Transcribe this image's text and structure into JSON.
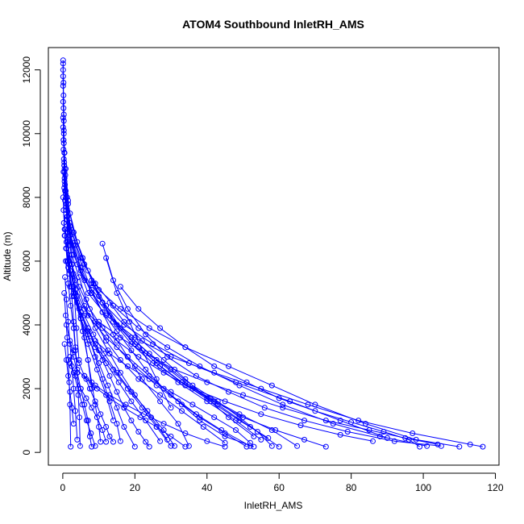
{
  "chart_data": {
    "type": "scatter",
    "title": "ATOM4 Southbound InletRH_AMS",
    "xlabel": "InletRH_AMS",
    "ylabel": "Altitude (m)",
    "xlim": [
      -4,
      121
    ],
    "ylim": [
      -400,
      12700
    ],
    "x_ticks": [
      0,
      20,
      40,
      60,
      80,
      100,
      120
    ],
    "y_ticks": [
      0,
      2000,
      4000,
      6000,
      8000,
      10000,
      12000
    ],
    "grid": false,
    "legend": "none",
    "marker": "open-circle",
    "connected": true,
    "color": "#0000ff",
    "series": [
      {
        "x": [
          0.1,
          0.1,
          0.2,
          0.1,
          0.3,
          0.2,
          0.4,
          0.6,
          1.0,
          2.0,
          3.5,
          5.5,
          8.0,
          11.0,
          14.0,
          18.0,
          22.0,
          27.0,
          32.0,
          35.0
        ],
        "y": [
          12300,
          12000,
          11600,
          11000,
          10400,
          9800,
          9000,
          8400,
          7800,
          7200,
          6500,
          5800,
          5100,
          4400,
          3700,
          3000,
          2300,
          1600,
          900,
          200
        ]
      },
      {
        "x": [
          0.2,
          0.5,
          1.0,
          2.0,
          4.0,
          7.0,
          12.0,
          20.0,
          30.0,
          42.0,
          55.0,
          68.0,
          82.0,
          97.0,
          113.0,
          116.5
        ],
        "y": [
          9500,
          8600,
          7700,
          6800,
          5900,
          5000,
          4300,
          3600,
          3000,
          2500,
          2000,
          1500,
          1000,
          600,
          250,
          180
        ]
      },
      {
        "x": [
          0.1,
          0.4,
          1.2,
          3.0,
          6.0,
          10.0,
          16.0,
          24.0,
          34.0,
          46.0,
          58.0,
          70.0,
          84.0,
          98.0,
          110.0
        ],
        "y": [
          10200,
          9100,
          8000,
          6900,
          5900,
          5100,
          4500,
          3900,
          3300,
          2700,
          2100,
          1500,
          900,
          400,
          180
        ]
      },
      {
        "x": [
          0.3,
          0.8,
          2.0,
          5.0,
          9.0,
          14.0,
          21.0,
          29.0,
          38.0,
          49.0,
          61.0,
          75.0,
          88.0,
          101.0
        ],
        "y": [
          9200,
          8200,
          7100,
          6100,
          5300,
          4600,
          3900,
          3300,
          2700,
          2100,
          1500,
          900,
          500,
          200
        ]
      },
      {
        "x": [
          0.2,
          0.6,
          1.5,
          3.0,
          6.0,
          11.0,
          17.0,
          25.0,
          35.0,
          48.0,
          63.0,
          77.0,
          90.0
        ],
        "y": [
          8800,
          7900,
          7000,
          6200,
          5400,
          4700,
          4000,
          3400,
          2800,
          2200,
          1600,
          1000,
          450
        ]
      },
      {
        "x": [
          0.5,
          1.0,
          2.5,
          5.0,
          8.0,
          13.0,
          19.0,
          26.0,
          34.0,
          43.0,
          52.0,
          60.0
        ],
        "y": [
          8500,
          7600,
          6700,
          5800,
          5000,
          4300,
          3600,
          2900,
          2200,
          1500,
          800,
          180
        ]
      },
      {
        "x": [
          0.1,
          0.5,
          1.5,
          3.5,
          7.0,
          12.0,
          18.0,
          24.0,
          30.0,
          37.0,
          44.0,
          52.0
        ],
        "y": [
          8000,
          7000,
          6000,
          5100,
          4300,
          3600,
          3000,
          2400,
          1800,
          1200,
          700,
          200
        ]
      },
      {
        "x": [
          0.4,
          1.2,
          2.8,
          5.0,
          8.0,
          11.0,
          15.0,
          19.0,
          23.0,
          28.0,
          33.0,
          38.0,
          45.0,
          53.0
        ],
        "y": [
          8300,
          7400,
          6500,
          5700,
          5000,
          4400,
          3800,
          3200,
          2600,
          2000,
          1500,
          1000,
          500,
          180
        ]
      },
      {
        "x": [
          0.2,
          0.6,
          1.2,
          2.5,
          4.5,
          7.0,
          10.0,
          14.0,
          18.0,
          22.0,
          26.0,
          30.0
        ],
        "y": [
          7600,
          6800,
          6000,
          5200,
          4500,
          3800,
          3200,
          2600,
          2000,
          1400,
          800,
          200
        ]
      },
      {
        "x": [
          0.3,
          0.9,
          1.8,
          3.0,
          5.0,
          7.5,
          10.0,
          12.5,
          15.0,
          17.0,
          20.0
        ],
        "y": [
          7200,
          6400,
          5600,
          4900,
          4200,
          3500,
          2800,
          2100,
          1400,
          800,
          180
        ]
      },
      {
        "x": [
          0.5,
          1.5,
          3.0,
          5.0,
          7.0,
          9.0,
          11.0,
          13.0,
          15.0,
          16.0
        ],
        "y": [
          6800,
          6000,
          5200,
          4400,
          3700,
          3000,
          2300,
          1600,
          900,
          350
        ]
      },
      {
        "x": [
          1.0,
          2.0,
          3.5,
          5.0,
          6.0,
          7.0,
          8.0,
          9.0,
          10.0,
          10.5
        ],
        "y": [
          6400,
          5700,
          5000,
          4300,
          3600,
          2900,
          2200,
          1500,
          800,
          330
        ]
      },
      {
        "x": [
          0.8,
          1.5,
          2.2,
          3.0,
          3.5,
          4.0,
          4.3,
          4.6,
          4.8
        ],
        "y": [
          6000,
          5300,
          4600,
          3900,
          3200,
          2500,
          1800,
          1100,
          200
        ]
      },
      {
        "x": [
          0.6,
          1.0,
          1.5,
          2.0,
          2.5,
          3.0,
          3.5,
          4.0
        ],
        "y": [
          5500,
          4800,
          4100,
          3400,
          2700,
          2000,
          1300,
          400
        ]
      },
      {
        "x": [
          0.4,
          0.8,
          1.2,
          1.5,
          1.8,
          2.0,
          2.2
        ],
        "y": [
          5000,
          4300,
          3600,
          2900,
          2200,
          1500,
          180
        ]
      },
      {
        "x": [
          1.5,
          3.0,
          5.5,
          8.5,
          12.0,
          16.0,
          21.0,
          27.0,
          34.0,
          42.0,
          50.0,
          59.0,
          67.0,
          73.0
        ],
        "y": [
          7800,
          6900,
          6100,
          5300,
          4600,
          3900,
          3300,
          2700,
          2100,
          1600,
          1100,
          700,
          400,
          180
        ]
      },
      {
        "x": [
          2.0,
          4.0,
          7.0,
          10.0,
          14.0,
          19.0,
          25.0,
          32.0,
          40.0,
          48.0,
          55.0
        ],
        "y": [
          7500,
          6600,
          5700,
          4900,
          4100,
          3400,
          2800,
          2200,
          1600,
          1000,
          400
        ]
      },
      {
        "x": [
          1.0,
          2.5,
          4.5,
          7.5,
          11.0,
          15.0,
          20.0,
          26.0,
          32.0,
          38.0,
          45.0,
          51.0
        ],
        "y": [
          6600,
          5900,
          5200,
          4500,
          3900,
          3300,
          2700,
          2100,
          1600,
          1100,
          600,
          180
        ]
      },
      {
        "x": [
          0.7,
          1.8,
          3.5,
          6.0,
          9.0,
          12.5,
          16.0,
          20.0,
          24.5,
          29.0
        ],
        "y": [
          7000,
          6200,
          5400,
          4600,
          3900,
          3200,
          2500,
          1800,
          1100,
          400
        ]
      },
      {
        "x": [
          0.2,
          0.4,
          0.8,
          1.3,
          2.0,
          3.0,
          4.0,
          5.5,
          7.0,
          8.0
        ],
        "y": [
          9800,
          9000,
          8200,
          7400,
          6500,
          5600,
          4700,
          3800,
          2900,
          2000
        ]
      },
      {
        "x": [
          0.1,
          0.3,
          0.5,
          0.8,
          1.2,
          1.6,
          2.0,
          2.5,
          3.0,
          3.5,
          4.0
        ],
        "y": [
          10500,
          9700,
          8900,
          8100,
          7300,
          6500,
          5700,
          4900,
          4100,
          3300,
          2500
        ]
      },
      {
        "x": [
          3.0,
          5.5,
          8.0,
          11.0,
          15.0,
          20.0,
          26.0,
          33.0,
          41.0,
          49.0,
          58.0,
          65.0
        ],
        "y": [
          6900,
          6100,
          5400,
          4700,
          4000,
          3400,
          2800,
          2200,
          1700,
          1200,
          700,
          200
        ]
      },
      {
        "x": [
          2.5,
          4.5,
          6.5,
          9.0,
          12.0,
          16.0,
          21.0,
          27.0,
          33.0,
          39.0,
          45.0
        ],
        "y": [
          6200,
          5500,
          4800,
          4100,
          3500,
          2900,
          2300,
          1800,
          1300,
          800,
          300
        ]
      },
      {
        "x": [
          11.0,
          14.0,
          18.0,
          23.0,
          29.0,
          37.0,
          46.0,
          56.0,
          67.0,
          79.0,
          92.0,
          105.0
        ],
        "y": [
          6550,
          5400,
          4500,
          3700,
          3000,
          2400,
          1900,
          1400,
          1000,
          650,
          350,
          200
        ]
      },
      {
        "x": [
          8.0,
          11.0,
          15.0,
          20.0,
          26.0,
          33.0,
          41.0,
          49.0,
          57.0
        ],
        "y": [
          5300,
          4700,
          4000,
          3400,
          2800,
          2200,
          1600,
          1000,
          450
        ]
      },
      {
        "x": [
          4.0,
          6.0,
          8.5,
          11.5,
          15.0,
          19.0,
          23.5,
          28.0,
          31.0
        ],
        "y": [
          4900,
          4300,
          3700,
          3100,
          2500,
          1900,
          1300,
          700,
          200
        ]
      },
      {
        "x": [
          5.0,
          7.0,
          9.0,
          12.0,
          15.5,
          19.0,
          23.0,
          27.0
        ],
        "y": [
          4400,
          3900,
          3300,
          2800,
          2200,
          1600,
          1000,
          350
        ]
      },
      {
        "x": [
          7.0,
          9.0,
          11.0,
          13.0,
          15.0,
          17.0,
          19.0,
          21.0,
          23.0,
          24.0
        ],
        "y": [
          3900,
          3400,
          2900,
          2400,
          1900,
          1400,
          1000,
          650,
          330,
          180
        ]
      },
      {
        "x": [
          9.0,
          13.0,
          18.0,
          24.0,
          30.0,
          36.0,
          42.0,
          48.0,
          52.0
        ],
        "y": [
          3500,
          3100,
          2700,
          2300,
          1900,
          1500,
          1100,
          700,
          300
        ]
      },
      {
        "x": [
          3.0,
          4.5,
          6.0,
          7.5,
          9.0,
          10.5,
          12.0,
          13.0,
          14.0
        ],
        "y": [
          3200,
          2800,
          2400,
          2000,
          1600,
          1200,
          800,
          500,
          330
        ]
      },
      {
        "x": [
          16.0,
          21.0,
          27.0,
          34.0,
          42.0,
          51.0,
          60.0,
          70.0,
          80.0,
          89.0,
          96.0,
          99.0
        ],
        "y": [
          5200,
          4500,
          3900,
          3300,
          2700,
          2200,
          1700,
          1300,
          950,
          650,
          400,
          180
        ]
      },
      {
        "x": [
          13.0,
          17.0,
          22.0,
          28.0,
          34.0,
          40.0,
          46.0,
          53.0
        ],
        "y": [
          4700,
          4100,
          3500,
          2900,
          2300,
          1700,
          1100,
          500
        ]
      },
      {
        "x": [
          1.0,
          2.0,
          3.0,
          4.0,
          5.0,
          6.0,
          7.0,
          7.5,
          8.0
        ],
        "y": [
          4000,
          3500,
          3000,
          2500,
          2000,
          1500,
          1000,
          500,
          180
        ]
      },
      {
        "x": [
          2.0,
          3.5,
          5.0,
          6.5,
          8.0,
          9.5,
          11.0,
          12.0
        ],
        "y": [
          2800,
          2400,
          2000,
          1700,
          1400,
          1100,
          700,
          330
        ]
      },
      {
        "x": [
          4.0,
          6.5,
          9.5,
          13.0,
          17.0,
          21.5,
          26.0,
          30.0,
          34.0
        ],
        "y": [
          2600,
          2300,
          2000,
          1700,
          1400,
          1100,
          800,
          500,
          180
        ]
      },
      {
        "x": [
          6.0,
          9.0,
          13.0,
          17.5,
          22.5,
          28.0,
          34.0,
          40.0,
          45.0
        ],
        "y": [
          2400,
          2100,
          1800,
          1500,
          1200,
          900,
          600,
          350,
          180
        ]
      },
      {
        "x": [
          19.0,
          24.0,
          30.0,
          36.0,
          43.0,
          49.0,
          54.0,
          58.0
        ],
        "y": [
          3600,
          3100,
          2600,
          2100,
          1600,
          1100,
          650,
          200
        ]
      },
      {
        "x": [
          0.1,
          0.1,
          0.2,
          0.3,
          0.5,
          0.7,
          0.9,
          1.1,
          1.4,
          1.7,
          2.0
        ],
        "y": [
          12200,
          11500,
          10800,
          10100,
          9400,
          8700,
          8000,
          7300,
          6600,
          5900,
          5200
        ]
      },
      {
        "x": [
          0.1,
          0.2,
          0.3,
          0.3,
          0.4,
          0.5,
          0.6
        ],
        "y": [
          11800,
          11200,
          10600,
          10000,
          9400,
          8800,
          8200
        ]
      },
      {
        "x": [
          1.5,
          3.0,
          5.0,
          7.0,
          9.5,
          12.0,
          14.0
        ],
        "y": [
          5800,
          5000,
          4200,
          3400,
          2600,
          1800,
          1000
        ]
      },
      {
        "x": [
          12.0,
          15.0,
          18.5,
          22.0,
          26.0,
          30.0
        ],
        "y": [
          6100,
          5000,
          4100,
          3200,
          2300,
          1400
        ]
      },
      {
        "x": [
          0.8,
          1.5,
          2.0,
          2.6,
          3.2,
          3.8,
          4.5
        ],
        "y": [
          8900,
          7900,
          6900,
          5900,
          4900,
          3900,
          2900
        ]
      },
      {
        "x": [
          10.0,
          16.0,
          23.0,
          31.0,
          40.0,
          50.0,
          61.0,
          73.0,
          85.0,
          95.0,
          104.0
        ],
        "y": [
          4100,
          3600,
          3100,
          2600,
          2200,
          1800,
          1400,
          1000,
          700,
          450,
          250
        ]
      },
      {
        "x": [
          6.0,
          10.0,
          15.0,
          21.0,
          28.0,
          36.0,
          45.0,
          55.0,
          66.0,
          77.0,
          86.0
        ],
        "y": [
          4500,
          4000,
          3500,
          3000,
          2500,
          2000,
          1600,
          1200,
          850,
          550,
          350
        ]
      },
      {
        "x": [
          2.0,
          3.0,
          4.2,
          5.4,
          6.6,
          7.8,
          9.0
        ],
        "y": [
          3000,
          2500,
          2000,
          1500,
          1000,
          600,
          200
        ]
      },
      {
        "x": [
          0.5,
          1.0,
          1.5,
          2.0,
          2.5,
          3.0
        ],
        "y": [
          3400,
          2900,
          2400,
          1900,
          1400,
          900
        ]
      }
    ]
  }
}
